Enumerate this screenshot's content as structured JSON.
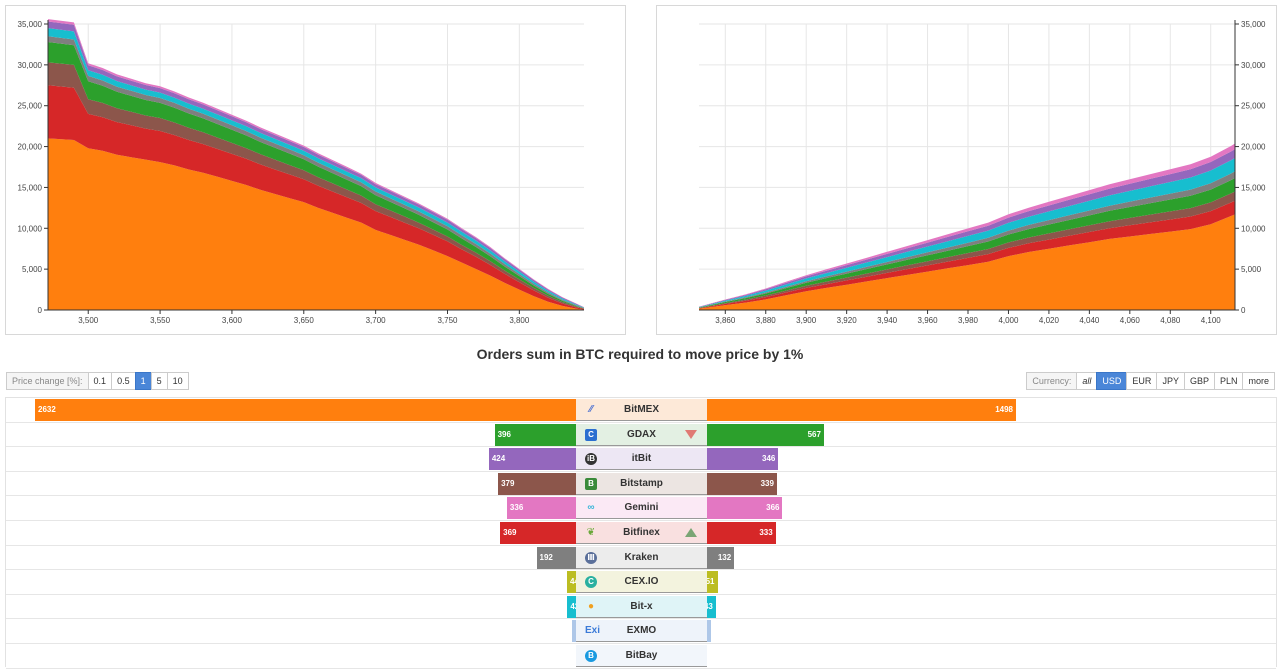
{
  "title": "Orders sum in BTC required to move price by 1%",
  "price_change": {
    "label": "Price change [%]:",
    "options": [
      "0.1",
      "0.5",
      "1",
      "5",
      "10"
    ],
    "selected": "1"
  },
  "currency": {
    "label": "Currency:",
    "options": [
      "all",
      "USD",
      "EUR",
      "JPY",
      "GBP",
      "PLN",
      "more"
    ],
    "selected": "USD"
  },
  "chart_data": [
    {
      "type": "area",
      "stacked": true,
      "side": "bids",
      "x_ticks": [
        "3,500",
        "3,550",
        "3,600",
        "3,650",
        "3,700",
        "3,750",
        "3,800"
      ],
      "y_ticks": [
        "0",
        "5,000",
        "10,000",
        "15,000",
        "20,000",
        "25,000",
        "30,000",
        "35,000"
      ],
      "y_axis_position": "left",
      "xlim": [
        3472,
        3845
      ],
      "ylim": [
        0,
        35000
      ],
      "grid": true,
      "x": [
        3472,
        3490,
        3500,
        3510,
        3520,
        3530,
        3540,
        3550,
        3560,
        3570,
        3580,
        3590,
        3600,
        3610,
        3620,
        3630,
        3640,
        3650,
        3660,
        3670,
        3680,
        3690,
        3700,
        3710,
        3720,
        3730,
        3740,
        3750,
        3760,
        3770,
        3780,
        3790,
        3800,
        3810,
        3820,
        3830,
        3840,
        3845
      ],
      "series": [
        {
          "color": "#ff7f0e",
          "values": [
            21000,
            20800,
            19800,
            19500,
            19000,
            18700,
            18400,
            18100,
            17700,
            17200,
            16800,
            16300,
            15800,
            15300,
            14700,
            14200,
            13700,
            13200,
            12500,
            11900,
            11300,
            10700,
            9800,
            9200,
            8600,
            8000,
            7300,
            6600,
            5800,
            5000,
            4200,
            3300,
            2500,
            1700,
            1000,
            500,
            150,
            50
          ]
        },
        {
          "color": "#d62728",
          "values": [
            6500,
            6400,
            4200,
            4100,
            4000,
            3900,
            3800,
            3800,
            3700,
            3600,
            3500,
            3400,
            3300,
            3200,
            3100,
            3000,
            2900,
            2800,
            2700,
            2600,
            2500,
            2400,
            2300,
            2200,
            2100,
            2000,
            1900,
            1800,
            1600,
            1500,
            1300,
            1100,
            900,
            700,
            500,
            300,
            150,
            80
          ]
        },
        {
          "color": "#8c564b",
          "values": [
            2800,
            2800,
            1800,
            1750,
            1700,
            1650,
            1600,
            1600,
            1550,
            1500,
            1450,
            1400,
            1350,
            1300,
            1250,
            1200,
            1150,
            1100,
            1050,
            1000,
            950,
            900,
            850,
            800,
            750,
            700,
            650,
            600,
            550,
            500,
            450,
            400,
            350,
            300,
            250,
            180,
            100,
            50
          ]
        },
        {
          "color": "#2ca02c",
          "values": [
            2500,
            2400,
            2200,
            2100,
            2000,
            1950,
            1900,
            1850,
            1800,
            1750,
            1700,
            1650,
            1600,
            1550,
            1500,
            1450,
            1400,
            1350,
            1300,
            1250,
            1200,
            1150,
            1100,
            1050,
            1000,
            950,
            900,
            850,
            800,
            700,
            600,
            500,
            400,
            300,
            220,
            150,
            80,
            40
          ]
        },
        {
          "color": "#7f7f7f",
          "values": [
            700,
            700,
            650,
            640,
            630,
            620,
            610,
            600,
            590,
            580,
            570,
            560,
            550,
            540,
            530,
            520,
            510,
            500,
            490,
            480,
            470,
            460,
            450,
            440,
            430,
            420,
            410,
            400,
            380,
            360,
            340,
            300,
            260,
            220,
            180,
            130,
            80,
            40
          ]
        },
        {
          "color": "#17becf",
          "values": [
            1000,
            1000,
            700,
            690,
            680,
            670,
            660,
            650,
            640,
            630,
            620,
            610,
            600,
            590,
            580,
            570,
            560,
            550,
            540,
            530,
            520,
            510,
            500,
            490,
            480,
            470,
            460,
            450,
            430,
            410,
            380,
            340,
            300,
            250,
            200,
            150,
            90,
            45
          ]
        },
        {
          "color": "#9467bd",
          "values": [
            800,
            800,
            600,
            590,
            580,
            570,
            560,
            550,
            540,
            530,
            520,
            510,
            500,
            490,
            480,
            470,
            460,
            450,
            440,
            430,
            420,
            410,
            400,
            390,
            380,
            370,
            360,
            350,
            330,
            310,
            290,
            260,
            230,
            200,
            160,
            120,
            80,
            40
          ]
        },
        {
          "color": "#e377c2",
          "values": [
            300,
            300,
            250,
            245,
            240,
            235,
            230,
            225,
            220,
            215,
            210,
            205,
            200,
            195,
            190,
            185,
            180,
            175,
            170,
            165,
            160,
            155,
            150,
            145,
            140,
            135,
            130,
            125,
            120,
            115,
            110,
            100,
            90,
            80,
            70,
            50,
            30,
            15
          ]
        }
      ]
    },
    {
      "type": "area",
      "stacked": true,
      "side": "asks",
      "x_ticks": [
        "3,860",
        "3,880",
        "3,900",
        "3,920",
        "3,940",
        "3,960",
        "3,980",
        "4,000",
        "4,020",
        "4,040",
        "4,060",
        "4,080",
        "4,100"
      ],
      "y_ticks": [
        "0",
        "5,000",
        "10,000",
        "15,000",
        "20,000",
        "25,000",
        "30,000",
        "35,000"
      ],
      "y_axis_position": "right",
      "xlim": [
        3847,
        4112
      ],
      "ylim": [
        0,
        35000
      ],
      "grid": true,
      "x": [
        3847,
        3860,
        3870,
        3880,
        3890,
        3900,
        3910,
        3920,
        3930,
        3940,
        3950,
        3960,
        3970,
        3980,
        3990,
        4000,
        4010,
        4020,
        4030,
        4040,
        4050,
        4060,
        4070,
        4080,
        4090,
        4100,
        4110,
        4112
      ],
      "series": [
        {
          "color": "#ff7f0e",
          "values": [
            150,
            600,
            900,
            1300,
            1800,
            2300,
            2700,
            3100,
            3500,
            3900,
            4300,
            4700,
            5100,
            5500,
            5900,
            6600,
            7100,
            7500,
            7900,
            8300,
            8700,
            9000,
            9300,
            9600,
            9900,
            10500,
            11500,
            11700
          ]
        },
        {
          "color": "#d62728",
          "values": [
            60,
            150,
            220,
            280,
            340,
            400,
            460,
            520,
            580,
            640,
            700,
            760,
            820,
            880,
            940,
            1000,
            1060,
            1120,
            1180,
            1240,
            1300,
            1360,
            1420,
            1480,
            1540,
            1600,
            1660,
            1680
          ]
        },
        {
          "color": "#8c564b",
          "values": [
            40,
            100,
            150,
            190,
            230,
            270,
            310,
            350,
            390,
            430,
            470,
            510,
            550,
            590,
            630,
            670,
            710,
            750,
            790,
            830,
            870,
            910,
            950,
            990,
            1030,
            1070,
            1110,
            1120
          ]
        },
        {
          "color": "#2ca02c",
          "values": [
            50,
            130,
            190,
            250,
            310,
            370,
            430,
            490,
            550,
            610,
            670,
            730,
            790,
            850,
            910,
            970,
            1030,
            1090,
            1150,
            1210,
            1270,
            1330,
            1390,
            1450,
            1510,
            1570,
            1630,
            1650
          ]
        },
        {
          "color": "#7f7f7f",
          "values": [
            20,
            60,
            90,
            120,
            150,
            180,
            210,
            240,
            270,
            300,
            330,
            360,
            390,
            420,
            450,
            480,
            510,
            540,
            570,
            600,
            630,
            660,
            690,
            720,
            750,
            780,
            810,
            820
          ]
        },
        {
          "color": "#17becf",
          "values": [
            40,
            110,
            170,
            230,
            290,
            350,
            410,
            470,
            530,
            590,
            650,
            710,
            770,
            830,
            890,
            950,
            1010,
            1070,
            1130,
            1190,
            1250,
            1310,
            1370,
            1430,
            1490,
            1550,
            1610,
            1630
          ]
        },
        {
          "color": "#9467bd",
          "values": [
            30,
            80,
            120,
            160,
            200,
            240,
            280,
            320,
            360,
            400,
            440,
            480,
            520,
            560,
            600,
            640,
            680,
            720,
            760,
            800,
            840,
            880,
            920,
            960,
            1000,
            1040,
            1080,
            1090
          ]
        },
        {
          "color": "#e377c2",
          "values": [
            20,
            50,
            75,
            100,
            125,
            150,
            175,
            200,
            225,
            250,
            275,
            300,
            325,
            350,
            375,
            400,
            425,
            450,
            475,
            500,
            525,
            550,
            575,
            600,
            625,
            650,
            675,
            680
          ]
        }
      ]
    },
    {
      "type": "bar",
      "orientation": "horizontal",
      "diverging": true,
      "categories": [
        "BitMEX",
        "GDAX",
        "itBit",
        "Bitstamp",
        "Gemini",
        "Bitfinex",
        "Kraken",
        "CEX.IO",
        "Bit-x",
        "EXMO",
        "BitBay"
      ],
      "series": [
        {
          "side": "left",
          "values": [
            2632,
            396,
            424,
            379,
            336,
            369,
            192,
            44,
            42,
            6,
            0
          ],
          "labels": [
            "2632",
            "396",
            "424",
            "379",
            "336",
            "369",
            "192",
            "44",
            "42",
            "",
            ""
          ]
        },
        {
          "side": "right",
          "values": [
            1498,
            567,
            346,
            339,
            366,
            333,
            132,
            51,
            43,
            6,
            0
          ],
          "labels": [
            "1498",
            "567",
            "346",
            "339",
            "366",
            "333",
            "132",
            "51",
            "43",
            "",
            ""
          ]
        }
      ],
      "colors": [
        "#ff7f0e",
        "#2ca02c",
        "#9467bd",
        "#8c564b",
        "#e377c2",
        "#d62728",
        "#7f7f7f",
        "#bcbd22",
        "#17becf",
        "#aec7e8",
        "#c5dbf2"
      ],
      "label_backgrounds": [
        "#fde9d8",
        "#e3f0e3",
        "#ede7f4",
        "#ece5e2",
        "#fbe9f5",
        "#f9e0e0",
        "#ececec",
        "#f3f3de",
        "#dff4f7",
        "#eef3fa",
        "#f2f6fb"
      ],
      "icons": [
        {
          "name": "bitmex-icon",
          "glyph": "⁄⁄",
          "color": "#4a6fd0",
          "shape": "plain"
        },
        {
          "name": "gdax-icon",
          "glyph": "C",
          "color": "#2a6fd0",
          "shape": "square"
        },
        {
          "name": "itbit-icon",
          "glyph": "iB",
          "color": "#333333",
          "shape": "circle"
        },
        {
          "name": "bitstamp-icon",
          "glyph": "B",
          "color": "#3a8a3a",
          "shape": "square"
        },
        {
          "name": "gemini-icon",
          "glyph": "∞",
          "color": "#38b5d8",
          "shape": "plain"
        },
        {
          "name": "bitfinex-icon",
          "glyph": "❦",
          "color": "#6aa83a",
          "shape": "plain"
        },
        {
          "name": "kraken-icon",
          "glyph": "Ⅲ",
          "color": "#5a6f9a",
          "shape": "circle"
        },
        {
          "name": "cexio-icon",
          "glyph": "C",
          "color": "#2ab0a0",
          "shape": "circle"
        },
        {
          "name": "bitx-icon",
          "glyph": "●",
          "color": "#f0a020",
          "shape": "plain"
        },
        {
          "name": "exmo-icon",
          "glyph": "Exi",
          "color": "#3a7ad8",
          "shape": "plain"
        },
        {
          "name": "bitbay-icon",
          "glyph": "B",
          "color": "#1a9ae0",
          "shape": "circle"
        }
      ],
      "trends": [
        "",
        "down",
        "",
        "",
        "",
        "up",
        "",
        "",
        "",
        "",
        ""
      ]
    }
  ]
}
